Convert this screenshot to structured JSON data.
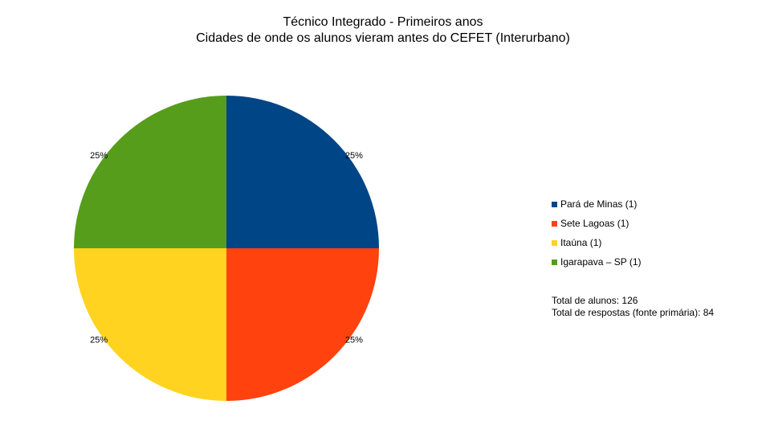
{
  "chart_data": {
    "type": "pie",
    "title": "Técnico Integrado - Primeiros anos",
    "subtitle": "Cidades de onde os alunos vieram antes do CEFET (Interurbano)",
    "slices": [
      {
        "label": "Pará de Minas (1)",
        "value": 1,
        "percent_label": "25%",
        "color": "#004586"
      },
      {
        "label": "Sete Lagoas (1)",
        "value": 1,
        "percent_label": "25%",
        "color": "#ff420e"
      },
      {
        "label": "Itaúna (1)",
        "value": 1,
        "percent_label": "25%",
        "color": "#ffd320"
      },
      {
        "label": "Igarapava – SP (1)",
        "value": 1,
        "percent_label": "25%",
        "color": "#579d1c"
      }
    ],
    "legend_position": "right",
    "notes": [
      "Total de alunos: 126",
      "Total de respostas (fonte primária): 84"
    ]
  }
}
